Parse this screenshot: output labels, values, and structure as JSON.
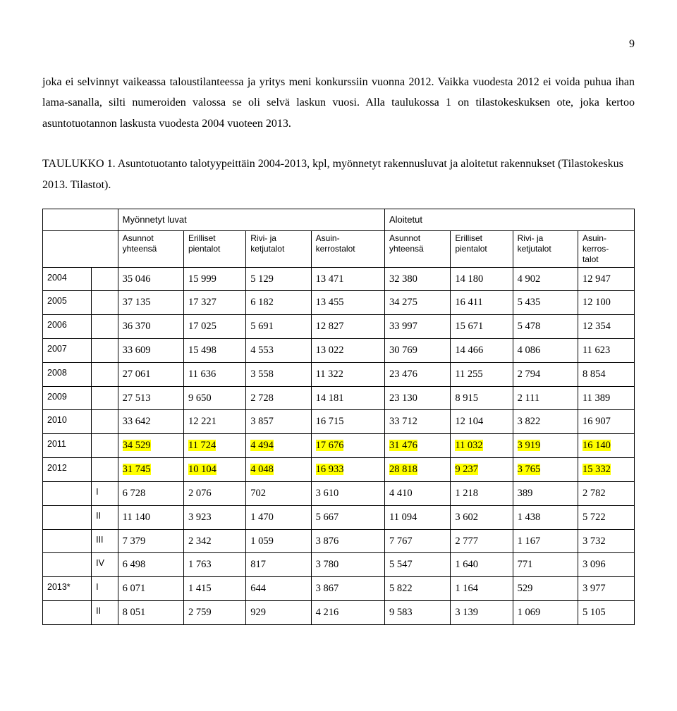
{
  "page_number": "9",
  "paragraph": "joka ei selvinnyt vaikeassa taloustilanteessa ja yritys meni konkurssiin vuonna 2012. Vaikka vuodesta 2012 ei voida puhua ihan lama-sanalla, silti numeroiden valossa se oli selvä laskun vuosi. Alla taulukossa 1 on tilastokeskuksen ote, joka kertoo asuntotuotannon laskusta vuodesta 2004 vuoteen 2013.",
  "caption": "TAULUKKO 1. Asuntotuotanto talotyypeittäin 2004-2013, kpl, myönnetyt rakennusluvat ja aloitetut rakennukset (Tilastokeskus 2013. Tilastot).",
  "table": {
    "group_headers": [
      "Myönnetyt luvat",
      "Aloitetut"
    ],
    "sub_headers": [
      "Asunnot\nyhteensä",
      "Erilliset\npientalot",
      "Rivi- ja\nketjutalot",
      "Asuin-\nkerrostalot",
      "Asunnot\nyhteensä",
      "Erilliset\npientalot",
      "Rivi- ja\nketjutalot",
      "Asuin-\nkerros-\ntalot"
    ],
    "rows": [
      {
        "year": "2004",
        "q": "",
        "cells": [
          "35 046",
          "15 999",
          "5 129",
          "13 471",
          "32 380",
          "14 180",
          "4 902",
          "12 947"
        ],
        "hl": []
      },
      {
        "year": "2005",
        "q": "",
        "cells": [
          "37 135",
          "17 327",
          "6 182",
          "13 455",
          "34 275",
          "16 411",
          "5 435",
          "12 100"
        ],
        "hl": []
      },
      {
        "year": "2006",
        "q": "",
        "cells": [
          "36 370",
          "17 025",
          "5 691",
          "12 827",
          "33 997",
          "15 671",
          "5 478",
          "12 354"
        ],
        "hl": []
      },
      {
        "year": "2007",
        "q": "",
        "cells": [
          "33 609",
          "15 498",
          "4 553",
          "13 022",
          "30 769",
          "14 466",
          "4 086",
          "11 623"
        ],
        "hl": []
      },
      {
        "year": "2008",
        "q": "",
        "cells": [
          "27 061",
          "11 636",
          "3 558",
          "11 322",
          "23 476",
          "11 255",
          "2 794",
          "8 854"
        ],
        "hl": []
      },
      {
        "year": "2009",
        "q": "",
        "cells": [
          "27 513",
          "9 650",
          "2 728",
          "14 181",
          "23 130",
          "8 915",
          "2 111",
          "11 389"
        ],
        "hl": []
      },
      {
        "year": "2010",
        "q": "",
        "cells": [
          "33 642",
          "12 221",
          "3 857",
          "16 715",
          "33 712",
          "12 104",
          "3 822",
          "16 907"
        ],
        "hl": []
      },
      {
        "year": "2011",
        "q": "",
        "cells": [
          "34 529",
          "11 724",
          "4 494",
          "17 676",
          "31 476",
          "11 032",
          "3 919",
          "16 140"
        ],
        "hl": [
          0,
          1,
          2,
          3,
          4,
          5,
          6,
          7
        ]
      },
      {
        "year": "2012",
        "q": "",
        "cells": [
          "31 745",
          "10 104",
          "4 048",
          "16 933",
          "28 818",
          "9 237",
          "3 765",
          "15 332"
        ],
        "hl": [
          0,
          1,
          2,
          3,
          4,
          5,
          6,
          7
        ]
      },
      {
        "year": "",
        "q": "I",
        "cells": [
          "6 728",
          "2 076",
          "702",
          "3 610",
          "4 410",
          "1 218",
          "389",
          "2 782"
        ],
        "hl": []
      },
      {
        "year": "",
        "q": "II",
        "cells": [
          "11 140",
          "3 923",
          "1 470",
          "5 667",
          "11 094",
          "3 602",
          "1 438",
          "5 722"
        ],
        "hl": []
      },
      {
        "year": "",
        "q": "III",
        "cells": [
          "7 379",
          "2 342",
          "1 059",
          "3 876",
          "7 767",
          "2 777",
          "1 167",
          "3 732"
        ],
        "hl": []
      },
      {
        "year": "",
        "q": "IV",
        "cells": [
          "6 498",
          "1 763",
          "817",
          "3 780",
          "5 547",
          "1 640",
          "771",
          "3 096"
        ],
        "hl": []
      },
      {
        "year": "2013*",
        "q": "I",
        "cells": [
          "6 071",
          "1 415",
          "644",
          "3 867",
          "5 822",
          "1 164",
          "529",
          "3 977"
        ],
        "hl": []
      },
      {
        "year": "",
        "q": "II",
        "cells": [
          "8 051",
          "2 759",
          "929",
          "4 216",
          "9 583",
          "3 139",
          "1 069",
          "5 105"
        ],
        "hl": []
      }
    ],
    "highlight_color": "#ffff00"
  }
}
